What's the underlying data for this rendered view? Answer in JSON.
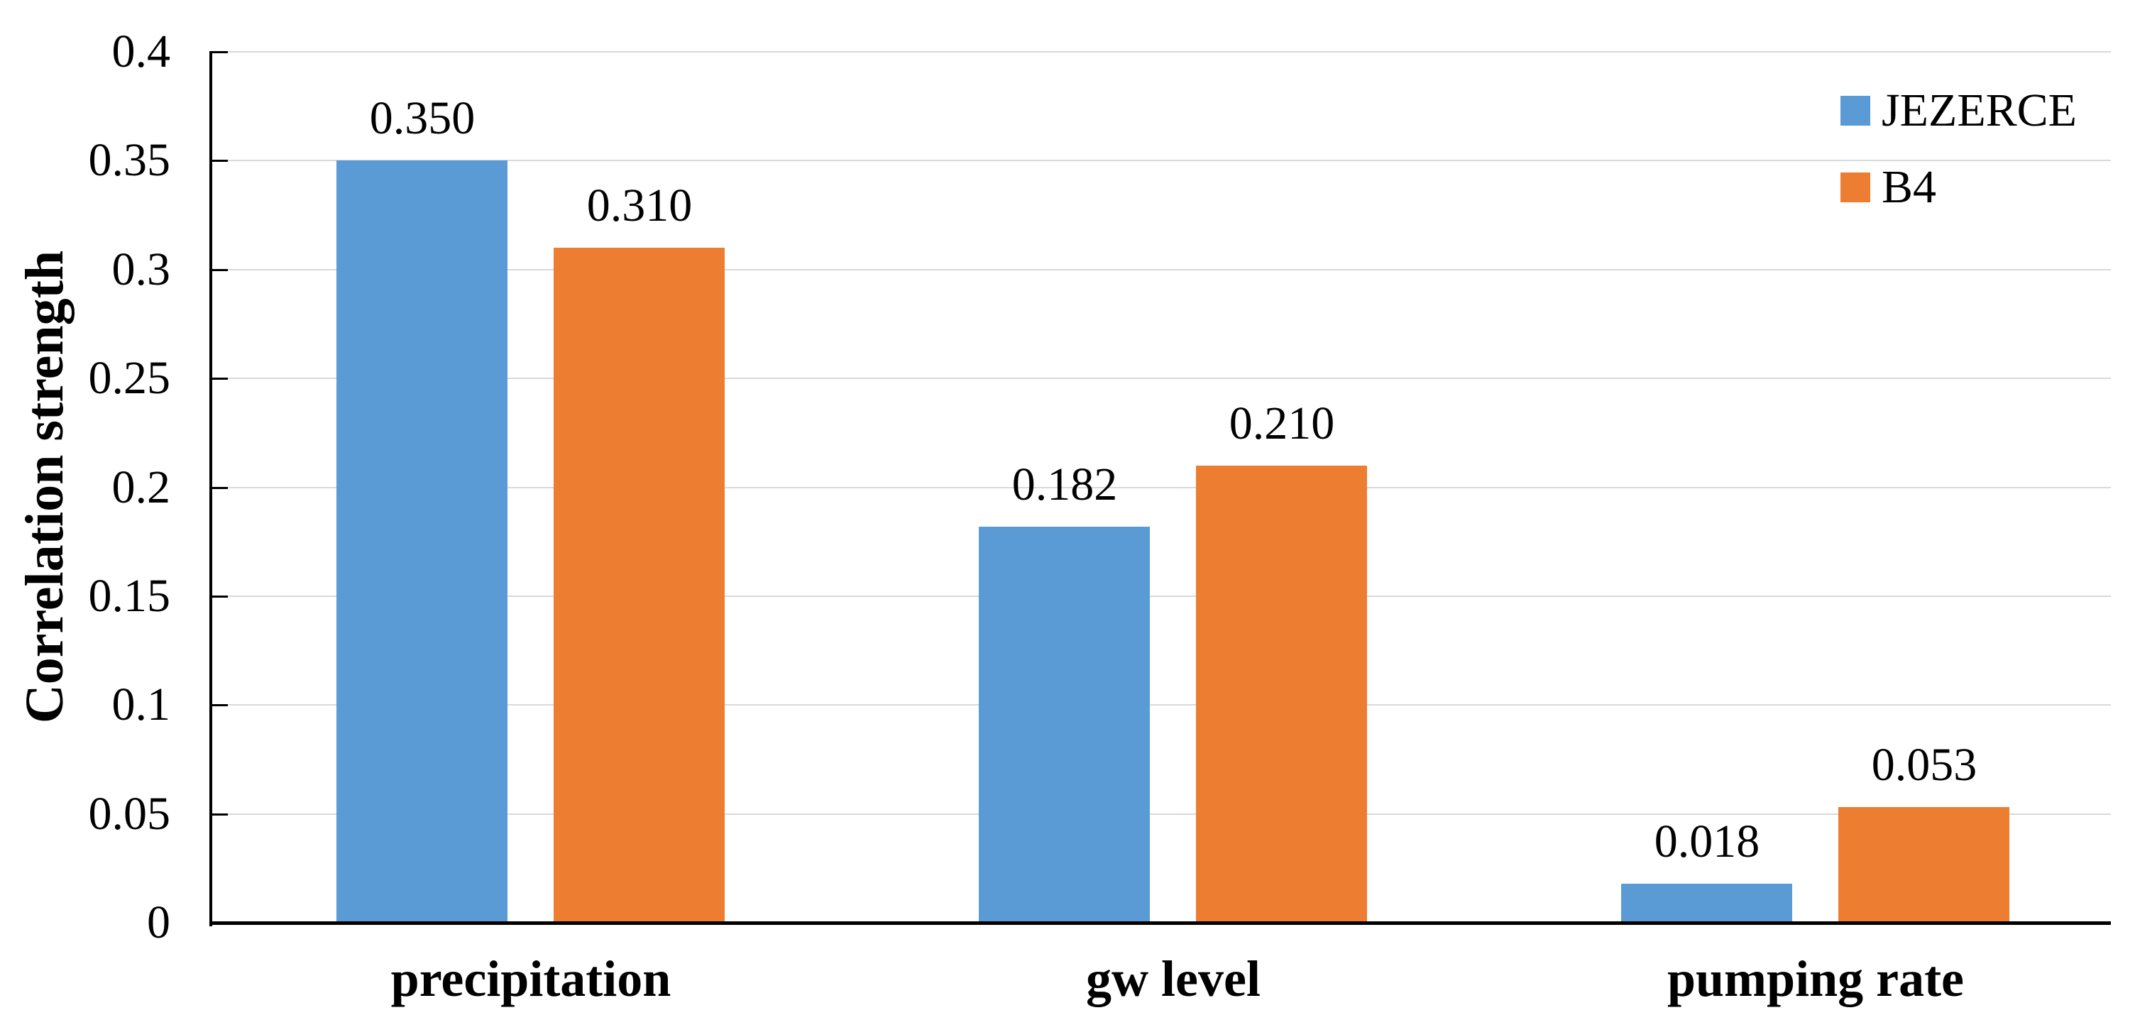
{
  "chart_data": {
    "type": "bar",
    "title": "",
    "categories": [
      "precipitation",
      "gw level",
      "pumping rate"
    ],
    "series": [
      {
        "name": "JEZERCE",
        "color": "#5B9BD5",
        "values": [
          0.35,
          0.182,
          0.018
        ],
        "value_labels": [
          "0.350",
          "0.182",
          "0.018"
        ]
      },
      {
        "name": "B4",
        "color": "#ED7D31",
        "values": [
          0.31,
          0.21,
          0.053
        ],
        "value_labels": [
          "0.310",
          "0.210",
          "0.053"
        ]
      }
    ],
    "xlabel": "",
    "ylabel": "Correlation strength",
    "ylim": [
      0,
      0.4
    ],
    "ytick_step": 0.05,
    "ytick_labels": [
      "0",
      "0.05",
      "0.1",
      "0.15",
      "0.2",
      "0.25",
      "0.3",
      "0.35",
      "0.4"
    ],
    "grid": true,
    "gridline_color": "#D9D9D9",
    "axis_color": "#000000",
    "text_color": "#000000",
    "background_color": "#FFFFFF",
    "legend_position": "top-right"
  }
}
